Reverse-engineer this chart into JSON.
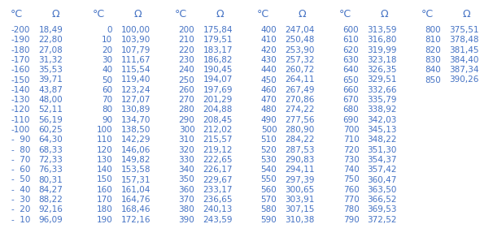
{
  "headers": [
    "°C",
    "Ω",
    "°C",
    "Ω",
    "°C",
    "Ω",
    "°C",
    "Ω",
    "°C",
    "Ω",
    "°C",
    "Ω"
  ],
  "columns": [
    {
      "temp": [
        -200,
        -190,
        -180,
        -170,
        -160,
        -150,
        -140,
        -130,
        -120,
        -110,
        -100,
        -90,
        -80,
        -70,
        -60,
        -50,
        -40,
        -30,
        -20,
        -10
      ],
      "ohm": [
        18.49,
        22.8,
        27.08,
        31.32,
        35.53,
        39.71,
        43.87,
        48.0,
        52.11,
        56.19,
        60.25,
        64.3,
        68.33,
        72.33,
        76.33,
        80.31,
        84.27,
        88.22,
        92.16,
        96.09
      ]
    },
    {
      "temp": [
        0,
        10,
        20,
        30,
        40,
        50,
        60,
        70,
        80,
        90,
        100,
        110,
        120,
        130,
        140,
        150,
        160,
        170,
        180,
        190
      ],
      "ohm": [
        100.0,
        103.9,
        107.79,
        111.67,
        115.54,
        119.4,
        123.24,
        127.07,
        130.89,
        134.7,
        138.5,
        142.29,
        146.06,
        149.82,
        153.58,
        157.31,
        161.04,
        164.76,
        168.46,
        172.16
      ]
    },
    {
      "temp": [
        200,
        210,
        220,
        230,
        240,
        250,
        260,
        270,
        280,
        290,
        300,
        310,
        320,
        330,
        340,
        350,
        360,
        370,
        380,
        390
      ],
      "ohm": [
        175.84,
        179.51,
        183.17,
        186.82,
        190.45,
        194.07,
        197.69,
        201.29,
        204.88,
        208.45,
        212.02,
        215.57,
        219.12,
        222.65,
        226.17,
        229.67,
        233.17,
        236.65,
        240.13,
        243.59
      ]
    },
    {
      "temp": [
        400,
        410,
        420,
        430,
        440,
        450,
        460,
        470,
        480,
        490,
        500,
        510,
        520,
        530,
        540,
        550,
        560,
        570,
        580,
        590
      ],
      "ohm": [
        247.04,
        250.48,
        253.9,
        257.32,
        260.72,
        264.11,
        267.49,
        270.86,
        274.22,
        277.56,
        280.9,
        284.22,
        287.53,
        290.83,
        294.11,
        297.39,
        300.65,
        303.91,
        307.15,
        310.38
      ]
    },
    {
      "temp": [
        600,
        610,
        620,
        630,
        640,
        650,
        660,
        670,
        680,
        690,
        700,
        710,
        720,
        730,
        740,
        750,
        760,
        770,
        780,
        790
      ],
      "ohm": [
        313.59,
        316.8,
        319.99,
        323.18,
        326.35,
        329.51,
        332.66,
        335.79,
        338.92,
        342.03,
        345.13,
        348.22,
        351.3,
        354.37,
        357.42,
        360.47,
        363.5,
        366.52,
        369.53,
        372.52
      ]
    },
    {
      "temp": [
        800,
        810,
        820,
        830,
        840,
        850
      ],
      "ohm": [
        375.51,
        378.48,
        381.45,
        384.4,
        387.34,
        390.26
      ]
    }
  ],
  "text_color": "#4472c4",
  "bg_color": "#ffffff",
  "font_size": 7.5,
  "header_font_size": 9.0,
  "figwidth": 6.06,
  "figheight": 2.92,
  "dpi": 100
}
